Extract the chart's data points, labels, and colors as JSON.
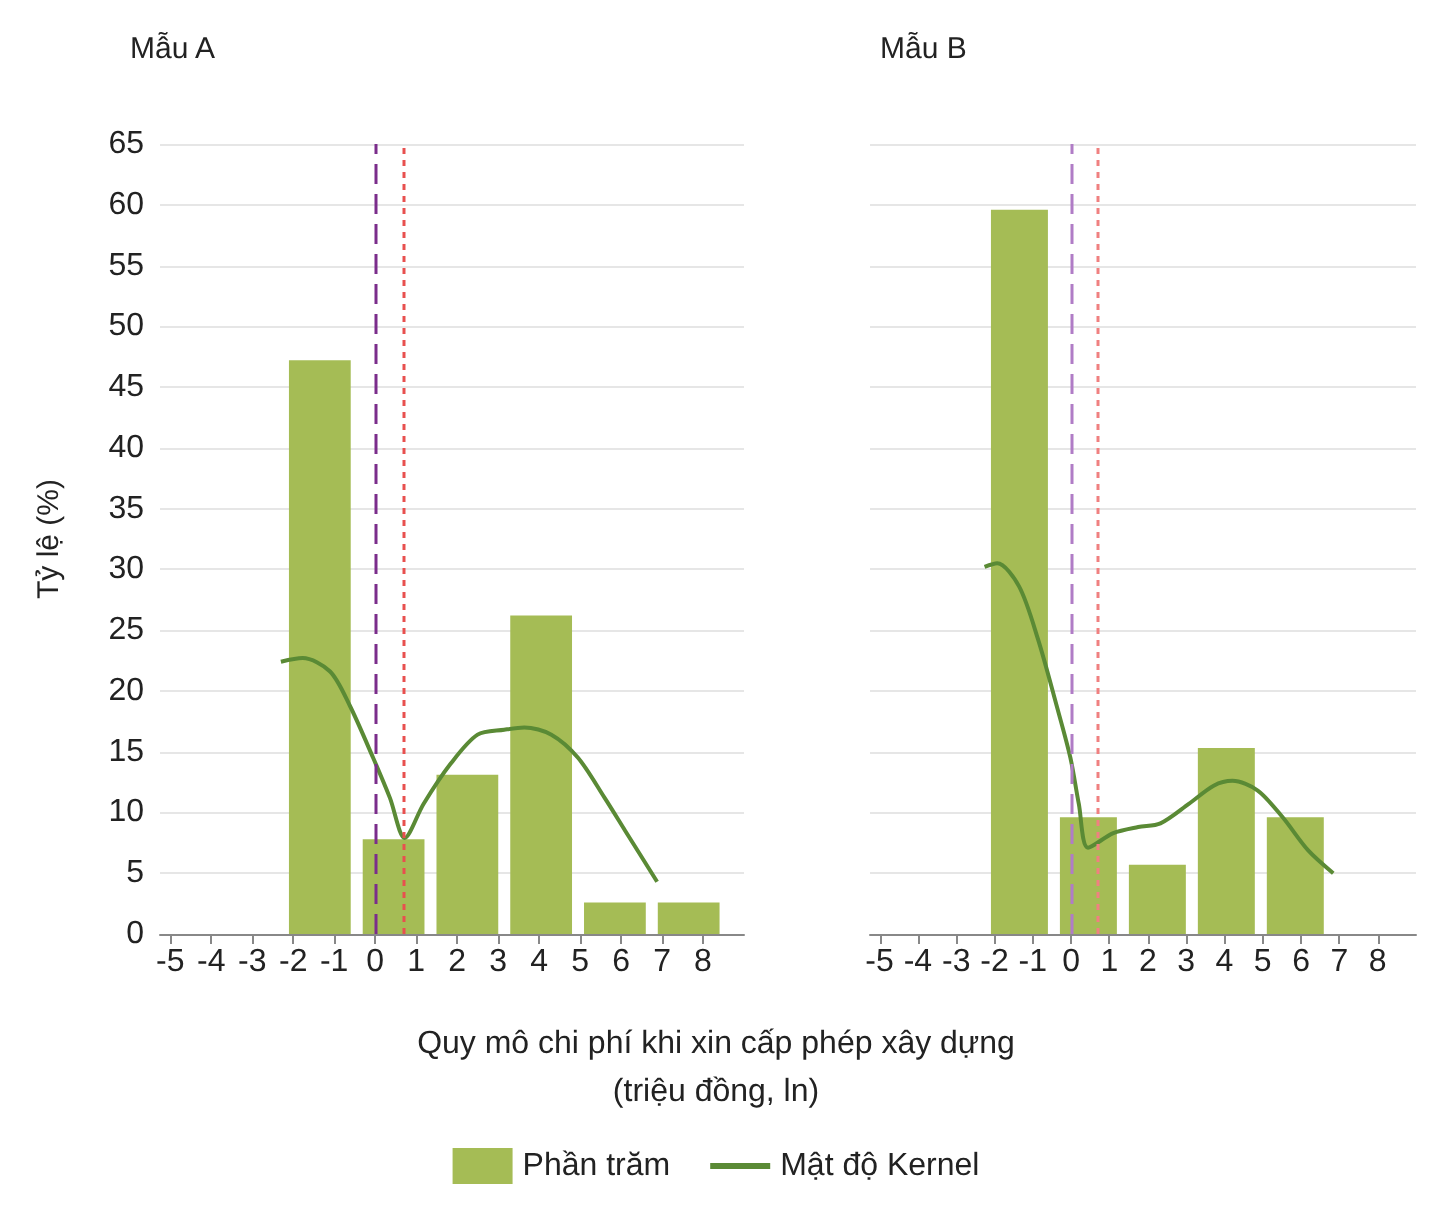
{
  "chart_data": [
    {
      "type": "histogram",
      "title": "Mẫu A",
      "ylabel": "Tỷ lệ (%)",
      "xlabel": "Quy mô chi phí khi xin cấp phép xây dựng\n(triệu đồng, ln)",
      "bins": [
        -2.25,
        -0.45,
        1.35,
        3.15,
        4.95,
        6.75,
        8.55
      ],
      "series": [
        {
          "name": "Phần trăm",
          "color": "#a5bc55",
          "values": [
            47.2,
            7.8,
            13.1,
            26.2,
            2.6,
            2.6
          ]
        },
        {
          "name": "Mật độ Kernel",
          "type": "line",
          "color": "#5a8a35",
          "x": [
            -2.3,
            -1.77,
            -1.1,
            -0.62,
            -0.05,
            0.36,
            0.72,
            1.18,
            1.84,
            2.5,
            3.15,
            3.64,
            4.3,
            4.95,
            5.6,
            6.1,
            6.88
          ],
          "values": [
            22.4,
            22.7,
            21.6,
            18.8,
            14.5,
            11.2,
            7.9,
            10.7,
            14.0,
            16.4,
            16.8,
            17.0,
            16.4,
            14.5,
            11.2,
            8.5,
            4.3
          ]
        }
      ],
      "ref_lines": [
        {
          "axis": "x",
          "value": 0,
          "color": "#7b2d8b",
          "line_style": "dashed"
        },
        {
          "axis": "x",
          "value": 0.7,
          "color": "#e8504f",
          "line_style": "dotted"
        }
      ],
      "xlim": [
        -5.25,
        9
      ],
      "xticks": [
        -5,
        -4,
        -3,
        -2,
        -1,
        0,
        1,
        2,
        3,
        4,
        5,
        6,
        7,
        8
      ],
      "ylim": [
        0,
        65
      ],
      "yticks": [
        0,
        5,
        10,
        15,
        20,
        25,
        30,
        35,
        40,
        45,
        50,
        55,
        60,
        65
      ],
      "grid": "y",
      "legend": "bottom"
    },
    {
      "type": "histogram",
      "title": "Mẫu B",
      "bins": [
        -2.25,
        -0.45,
        1.35,
        3.15,
        4.95,
        6.75
      ],
      "series": [
        {
          "color": "#a5bc55",
          "values": [
            59.6,
            9.6,
            5.7,
            15.3,
            9.6
          ]
        },
        {
          "type": "line",
          "color": "#5a8a35",
          "x": [
            -2.26,
            -1.93,
            -1.36,
            -0.87,
            -0.38,
            -0.02,
            0.2,
            0.44,
            1.1,
            1.75,
            2.33,
            3.07,
            3.72,
            4.21,
            4.87,
            5.52,
            6.18,
            6.84
          ],
          "values": [
            30.2,
            30.5,
            28.6,
            24.3,
            18.8,
            14.5,
            10.7,
            7.1,
            8.3,
            8.8,
            9.1,
            10.7,
            12.2,
            12.6,
            11.8,
            9.6,
            6.9,
            5.0
          ]
        }
      ],
      "ref_lines": [
        {
          "axis": "x",
          "value": 0,
          "color": "#b07cc6",
          "line_style": "dashed"
        },
        {
          "axis": "x",
          "value": 0.7,
          "color": "#f08080",
          "line_style": "dotted"
        }
      ],
      "xlim": [
        -5.25,
        9
      ],
      "xticks": [
        -5,
        -4,
        -3,
        -2,
        -1,
        0,
        1,
        2,
        3,
        4,
        5,
        6,
        7,
        8
      ],
      "ylim": [
        0,
        65
      ],
      "yticks": [
        0,
        5,
        10,
        15,
        20,
        25,
        30,
        35,
        40,
        45,
        50,
        55,
        60,
        65
      ],
      "grid": "y",
      "tick_labels": "x",
      "legend": false
    }
  ]
}
